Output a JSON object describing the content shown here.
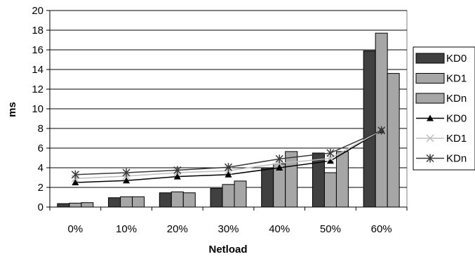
{
  "chart_data": {
    "type": "bar",
    "title": "",
    "xlabel": "Netload",
    "ylabel": "ms",
    "ylim": [
      0,
      20
    ],
    "yticks": [
      0,
      2,
      4,
      6,
      8,
      10,
      12,
      14,
      16,
      18,
      20
    ],
    "grid": true,
    "legend": "right",
    "categories": [
      "0%",
      "10%",
      "20%",
      "30%",
      "40%",
      "50%",
      "60%"
    ],
    "bar_series": [
      {
        "name": "KD0",
        "color": "#404040",
        "values": [
          0.35,
          0.95,
          1.45,
          1.9,
          4.0,
          5.5,
          15.9
        ]
      },
      {
        "name": "KD1",
        "color": "#a6a6a6",
        "values": [
          0.4,
          1.05,
          1.55,
          2.3,
          4.4,
          3.5,
          17.7
        ]
      },
      {
        "name": "KDn",
        "color": "#a6a6a6",
        "values": [
          0.45,
          1.05,
          1.45,
          2.65,
          5.65,
          5.65,
          13.6
        ]
      }
    ],
    "line_series": [
      {
        "name": "KD0",
        "color": "#000000",
        "marker": "triangle",
        "values": [
          2.5,
          2.7,
          3.1,
          3.3,
          4.0,
          4.7,
          7.8
        ]
      },
      {
        "name": "KD1",
        "color": "#bdbdbd",
        "marker": "x",
        "values": [
          2.9,
          3.15,
          3.5,
          3.7,
          4.45,
          4.95,
          7.8
        ]
      },
      {
        "name": "KDn",
        "color": "#3a3a3a",
        "marker": "star",
        "values": [
          3.3,
          3.5,
          3.75,
          4.05,
          4.9,
          5.5,
          7.8
        ]
      }
    ]
  }
}
